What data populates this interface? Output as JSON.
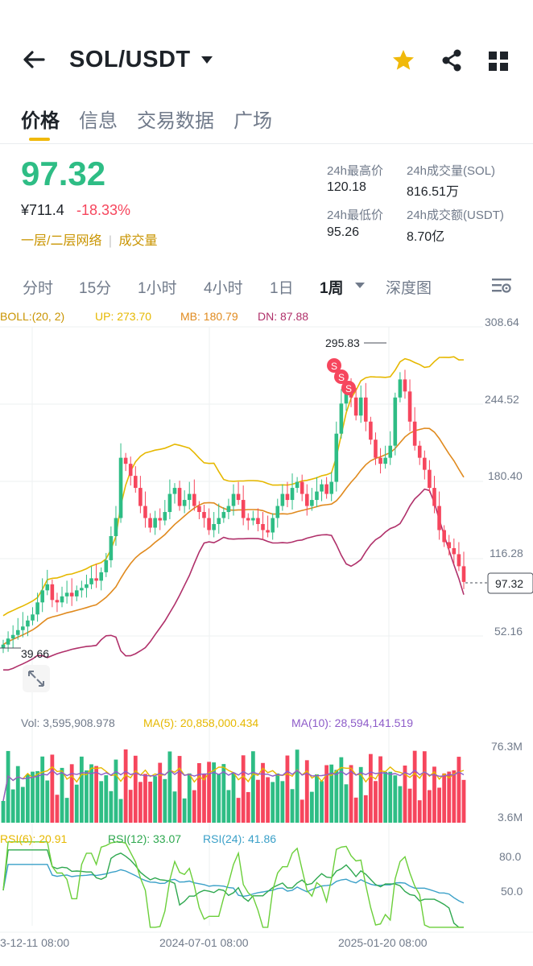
{
  "header": {
    "pair": "SOL/USDT",
    "icons": [
      "back-arrow-icon",
      "star-icon",
      "share-icon",
      "grid-icon"
    ]
  },
  "tabs": [
    "价格",
    "信息",
    "交易数据",
    "广场"
  ],
  "price": {
    "last": "97.32",
    "cny": "¥711.4",
    "change": "-18.33%",
    "tag1": "一层/二层网络",
    "tag2": "成交量",
    "tag_sep": "|"
  },
  "stats": {
    "high_label": "24h最高价",
    "high": "120.18",
    "low_label": "24h最低价",
    "low": "95.26",
    "vol_sol_label": "24h成交量(SOL)",
    "vol_sol": "816.51万",
    "vol_usdt_label": "24h成交额(USDT)",
    "vol_usdt": "8.70亿"
  },
  "intervals": [
    "分时",
    "15分",
    "1小时",
    "4小时",
    "1日",
    "1周",
    "深度图"
  ],
  "active_interval": "1周",
  "colors": {
    "up": "#2ebd85",
    "down": "#f6465d",
    "accent": "#f0b90b",
    "boll_up": "#e6b800",
    "boll_mb": "#e08a1e",
    "boll_dn": "#b0306a"
  },
  "chart_data": [
    {
      "type": "candlestick",
      "title": "",
      "legend": {
        "boll": "BOLL:(20, 2)",
        "up": "UP: 273.70",
        "mb": "MB: 180.79",
        "dn": "DN: 87.88"
      },
      "y_ticks": [
        "308.64",
        "244.52",
        "180.40",
        "116.28",
        "52.16"
      ],
      "ylim": [
        20,
        320
      ],
      "current_price": "97.32",
      "max_marker": "295.83",
      "min_marker": "39.66",
      "x_ticks": [
        "3-12-11 08:00",
        "2024-07-01 08:00",
        "2025-01-20 08:00"
      ],
      "signal_markers": [
        "S",
        "S",
        "S"
      ],
      "closes": [
        45,
        50,
        53,
        57,
        60,
        65,
        70,
        80,
        90,
        95,
        82,
        80,
        85,
        88,
        85,
        90,
        92,
        95,
        100,
        98,
        105,
        115,
        135,
        150,
        200,
        195,
        185,
        175,
        160,
        150,
        142,
        150,
        148,
        155,
        170,
        175,
        160,
        165,
        170,
        160,
        155,
        150,
        140,
        145,
        150,
        155,
        160,
        170,
        165,
        150,
        148,
        150,
        145,
        140,
        138,
        150,
        160,
        170,
        165,
        175,
        180,
        170,
        160,
        165,
        172,
        178,
        170,
        180,
        220,
        245,
        260,
        250,
        235,
        250,
        230,
        215,
        200,
        195,
        200,
        210,
        250,
        265,
        255,
        230,
        210,
        200,
        190,
        175,
        160,
        140,
        130,
        125,
        120,
        110,
        97
      ]
    },
    {
      "type": "bar",
      "title": "",
      "legend": {
        "vol": "Vol: 3,595,908.978",
        "ma5": "MA(5): 20,858,000.434",
        "ma10": "MA(10): 28,594,141.519"
      },
      "y_ticks": [
        "76.3M",
        "3.6M"
      ],
      "ylim": [
        3.6,
        76.3
      ]
    },
    {
      "type": "line",
      "title": "",
      "legend": {
        "rsi6": "RSI(6): 20.91",
        "rsi12": "RSI(12): 33.07",
        "rsi24": "RSI(24): 41.86"
      },
      "y_ticks": [
        "80.0",
        "50.0"
      ],
      "ylim": [
        20,
        90
      ]
    }
  ]
}
